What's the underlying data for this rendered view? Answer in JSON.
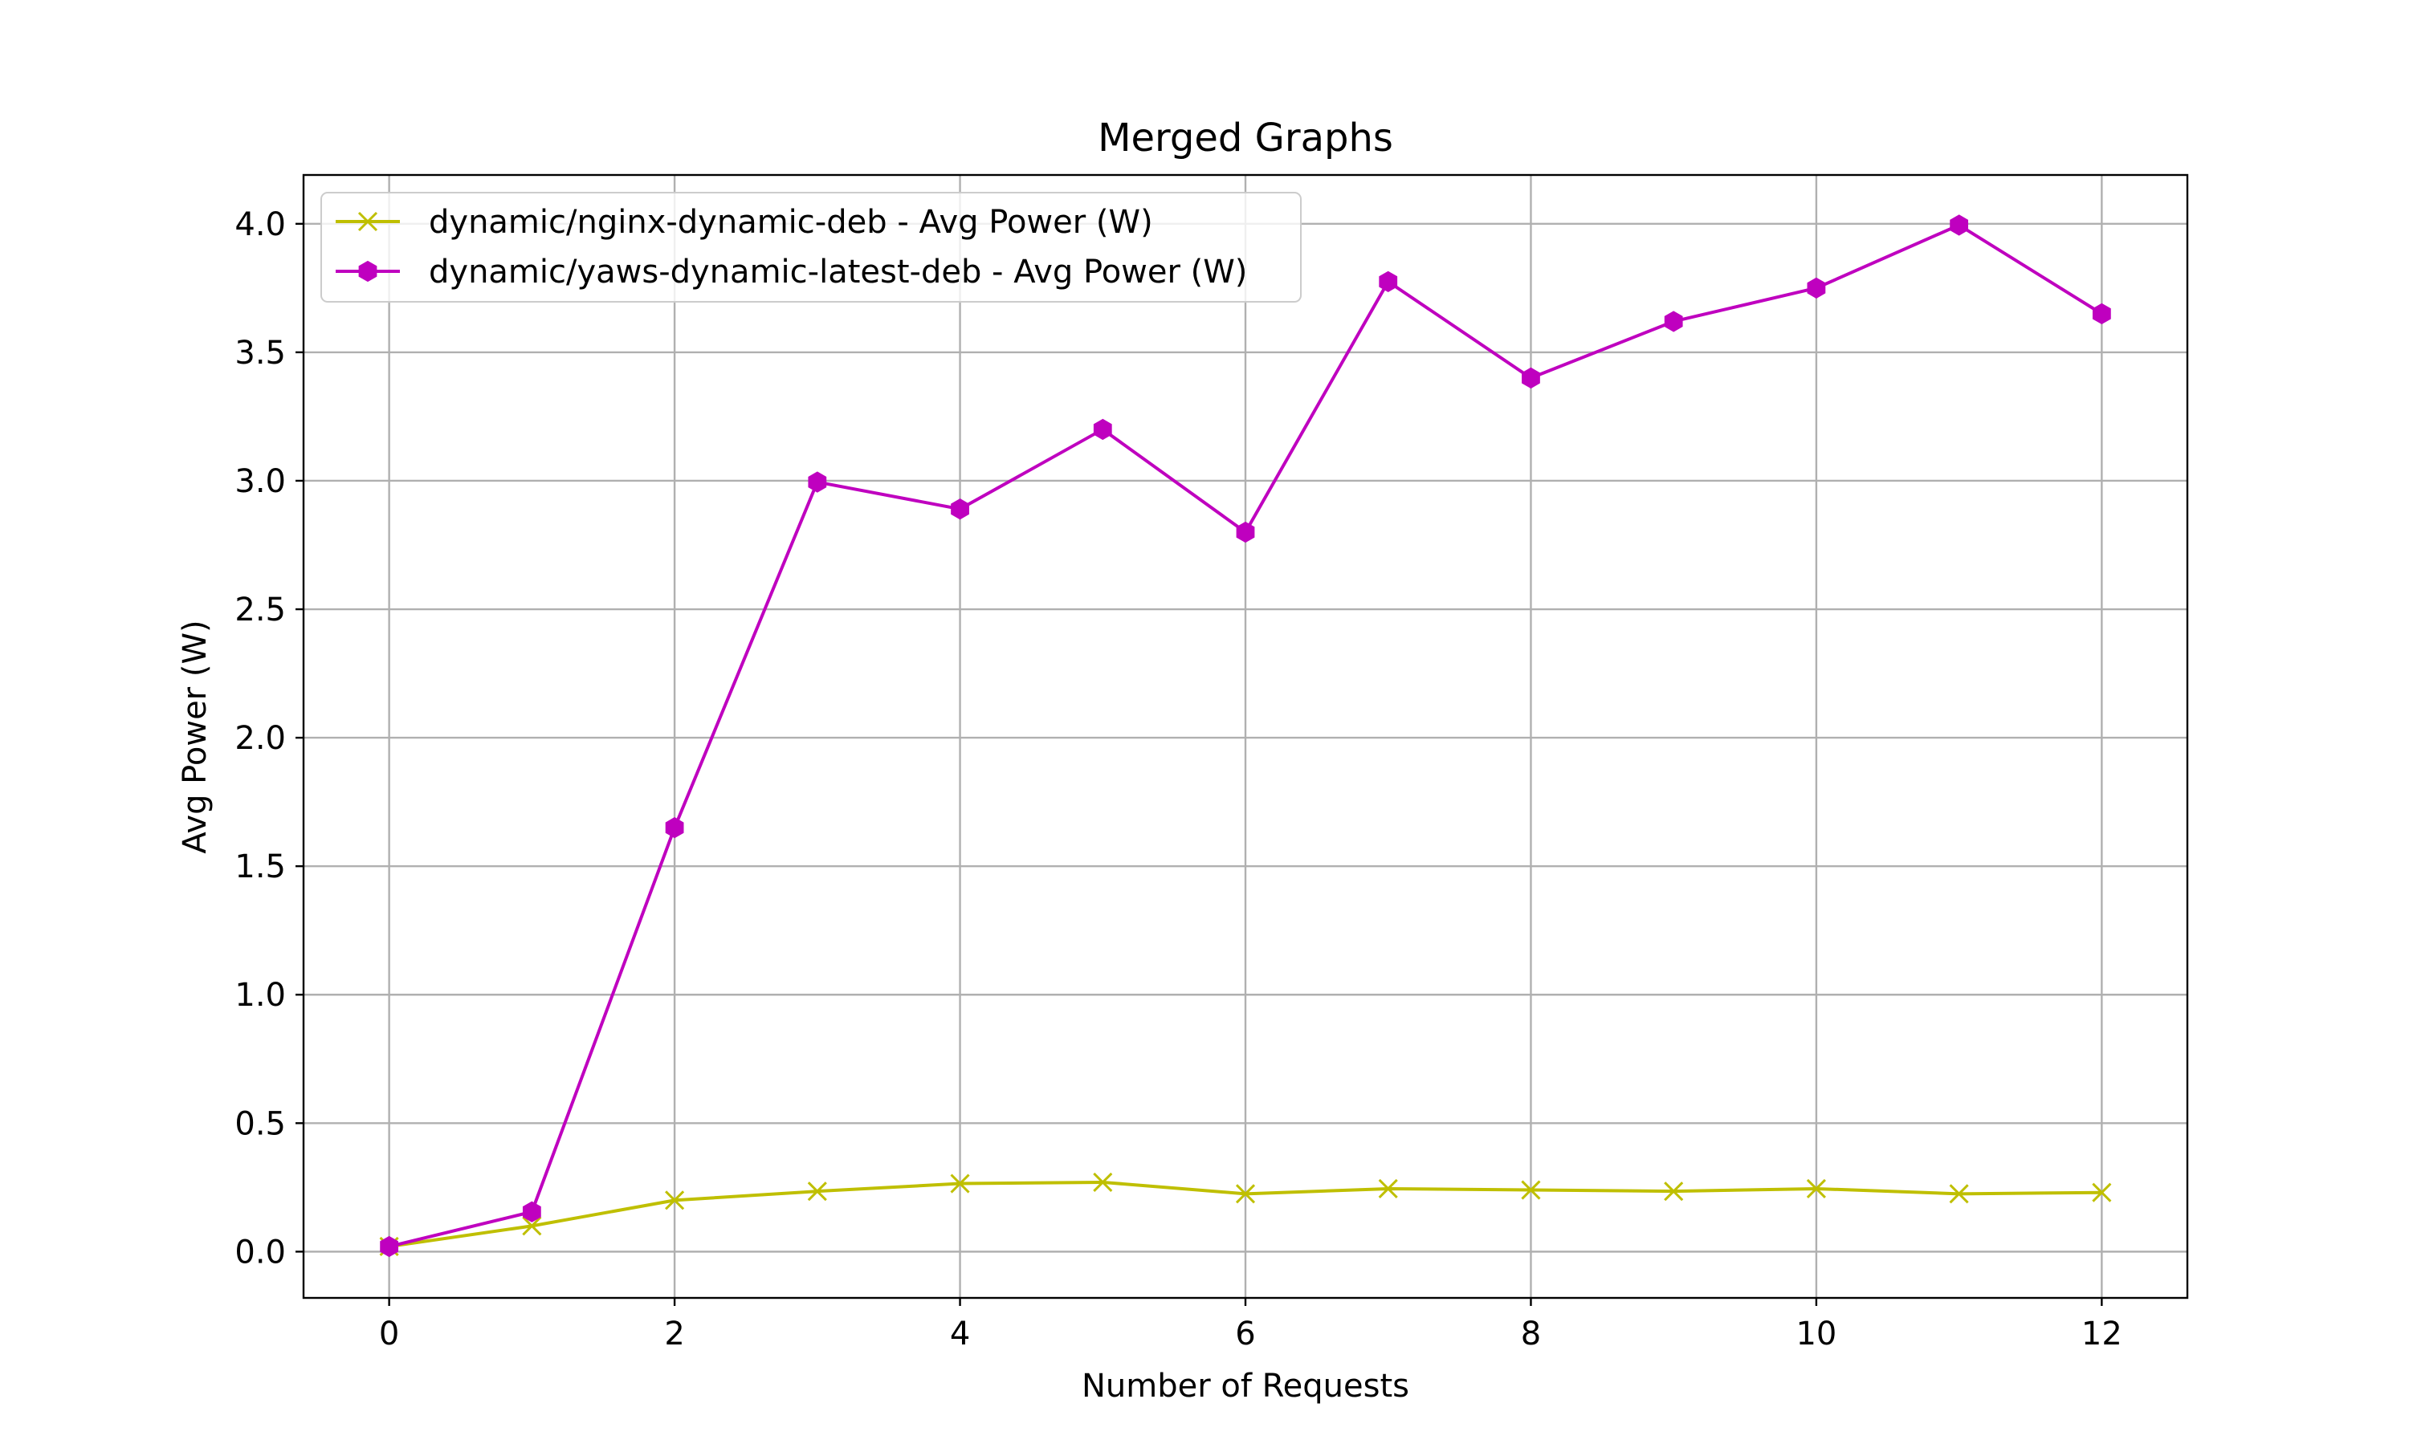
{
  "chart_data": {
    "type": "line",
    "title": "Merged Graphs",
    "xlabel": "Number of Requests",
    "ylabel": "Avg Power (W)",
    "xlim": [
      -0.6,
      12.6
    ],
    "ylim": [
      -0.18,
      4.19
    ],
    "xticks": [
      0,
      2,
      4,
      6,
      8,
      10,
      12
    ],
    "xtick_labels": [
      "0",
      "2",
      "4",
      "6",
      "8",
      "10",
      "12"
    ],
    "yticks": [
      0.0,
      0.5,
      1.0,
      1.5,
      2.0,
      2.5,
      3.0,
      3.5,
      4.0
    ],
    "ytick_labels": [
      "0.0",
      "0.5",
      "1.0",
      "1.5",
      "2.0",
      "2.5",
      "3.0",
      "3.5",
      "4.0"
    ],
    "grid": true,
    "legend_position": "top-left",
    "x": [
      0,
      1,
      2,
      3,
      4,
      5,
      6,
      7,
      8,
      9,
      10,
      11,
      12
    ],
    "series": [
      {
        "name": "dynamic/nginx-dynamic-deb - Avg Power (W)",
        "color": "#bfbf00",
        "marker": "x",
        "values": [
          0.02,
          0.1,
          0.2,
          0.235,
          0.265,
          0.27,
          0.225,
          0.245,
          0.24,
          0.235,
          0.245,
          0.225,
          0.23
        ]
      },
      {
        "name": "dynamic/yaws-dynamic-latest-deb - Avg Power (W)",
        "color": "#bf00bf",
        "marker": "hexagon",
        "values": [
          0.02,
          0.155,
          1.65,
          2.995,
          2.89,
          3.2,
          2.8,
          3.775,
          3.4,
          3.62,
          3.75,
          3.995,
          3.65
        ]
      }
    ]
  }
}
